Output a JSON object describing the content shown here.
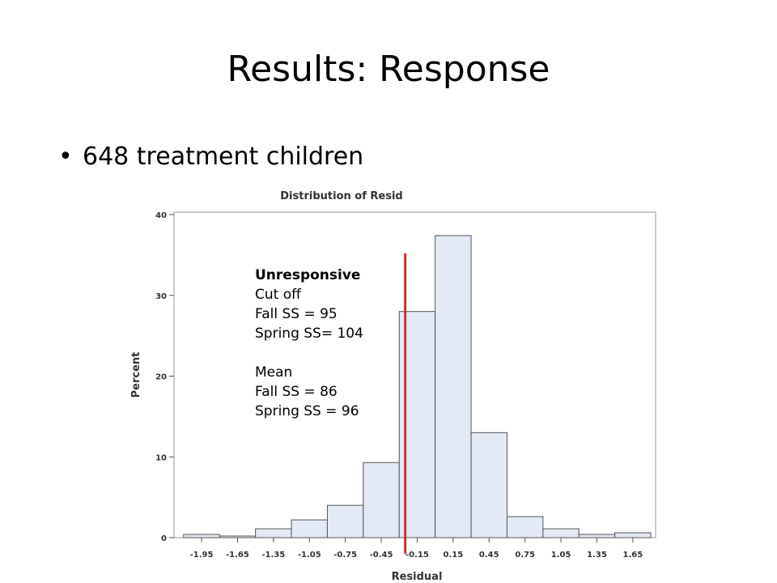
{
  "slide": {
    "title": "Results: Response",
    "bullet": "648 treatment children"
  },
  "annotation": {
    "heading": "Unresponsive",
    "line1": "Cut off",
    "line2": "Fall SS = 95",
    "line3": "Spring SS= 104",
    "line4": "Mean",
    "line5": "Fall SS = 86",
    "line6": "Spring SS = 96"
  },
  "colors": {
    "bar_fill": "#e3eaf5",
    "bar_stroke": "#555555",
    "cutoff_line": "#cc3333"
  },
  "chart_data": {
    "type": "bar",
    "title": "Distribution of Resid",
    "xlabel": "Residual",
    "ylabel": "Percent",
    "categories": [
      "-1.95",
      "-1.65",
      "-1.35",
      "-1.05",
      "-0.75",
      "-0.45",
      "-0.15",
      "0.15",
      "0.45",
      "0.75",
      "1.05",
      "1.35",
      "1.65"
    ],
    "values": [
      0.4,
      0.2,
      1.1,
      2.2,
      4.0,
      9.3,
      28.0,
      37.4,
      13.0,
      2.6,
      1.1,
      0.4,
      0.6
    ],
    "ylim": [
      0,
      40
    ],
    "yticks": [
      0,
      10,
      20,
      30,
      40
    ],
    "grid": false,
    "cutoff_residual": -0.25,
    "cutoff_top_percent": 35.2
  }
}
